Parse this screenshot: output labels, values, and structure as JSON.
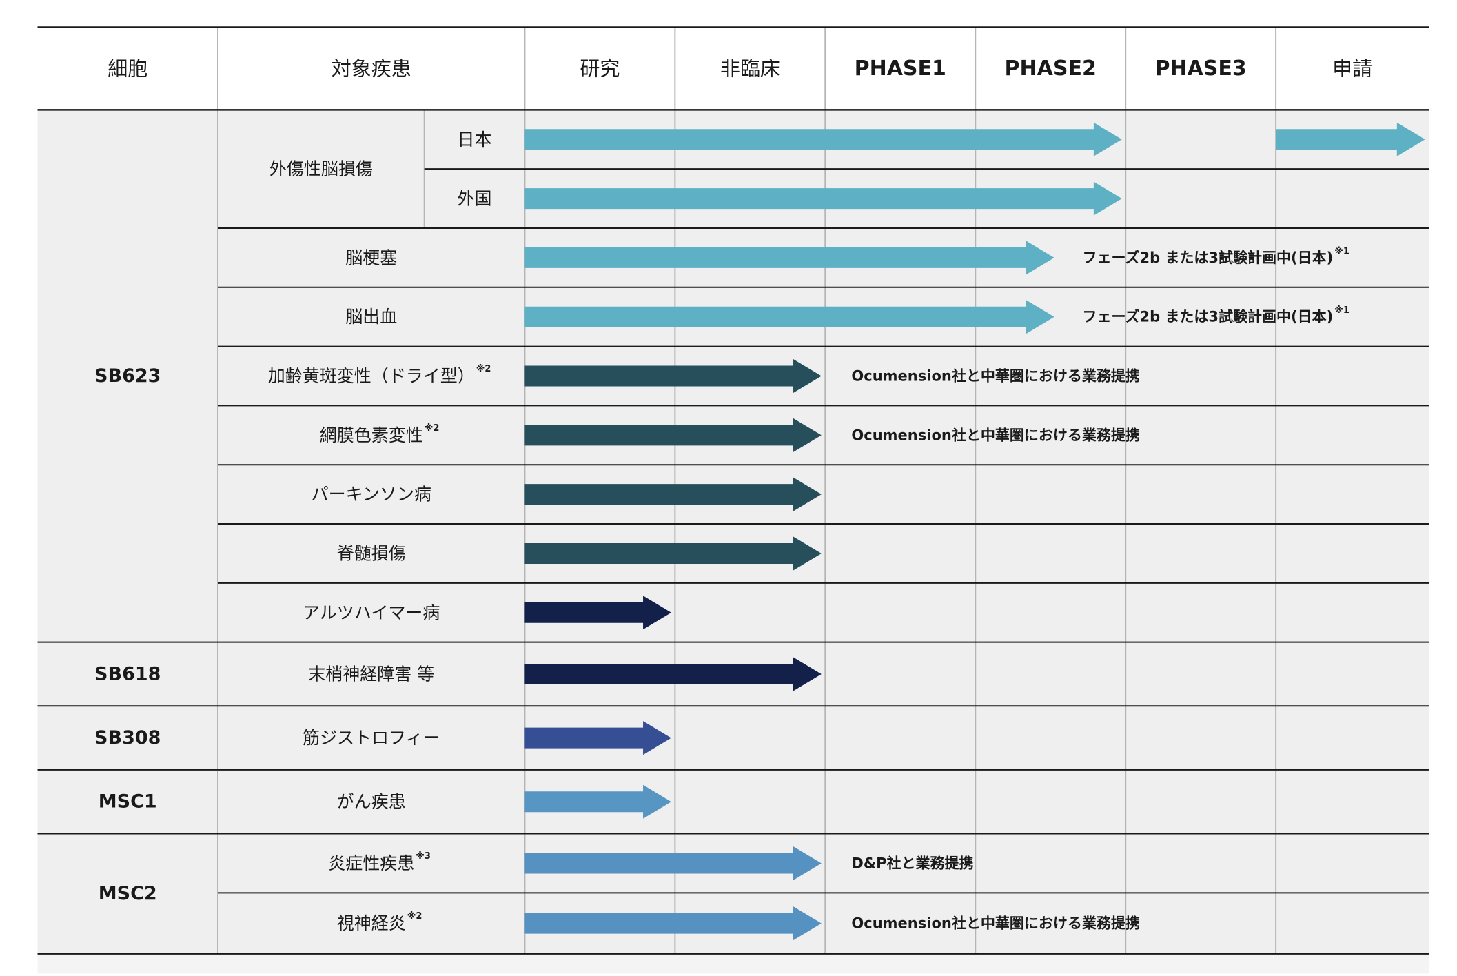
{
  "header": {
    "cell": "細胞",
    "disease": "対象疾患",
    "phases": [
      "研究",
      "非臨床",
      "PHASE1",
      "PHASE2",
      "PHASE3",
      "申請"
    ]
  },
  "groups": [
    {
      "cell": "SB623"
    },
    {
      "cell": "SB618"
    },
    {
      "cell": "SB308"
    },
    {
      "cell": "MSC1"
    },
    {
      "cell": "MSC2"
    }
  ],
  "rows": [
    {
      "disease": "外傷性脳損傷",
      "region": "日本",
      "sup": "",
      "start": 0,
      "end": 4,
      "color": "#5eb0c4",
      "note": "",
      "sup_note": "",
      "extra": {
        "start": 5,
        "end": 6
      }
    },
    {
      "disease": "",
      "region": "外国",
      "sup": "",
      "start": 0,
      "end": 4,
      "color": "#5eb0c4",
      "note": "",
      "sup_note": ""
    },
    {
      "disease": "脳梗塞",
      "region": "",
      "sup": "",
      "start": 0,
      "end": 3.55,
      "color": "#5eb0c4",
      "note": "フェーズ2b または3試験計画中(日本)",
      "sup_note": "※1"
    },
    {
      "disease": "脳出血",
      "region": "",
      "sup": "",
      "start": 0,
      "end": 3.55,
      "color": "#5eb0c4",
      "note": "フェーズ2b または3試験計画中(日本)",
      "sup_note": "※1"
    },
    {
      "disease": "加齢黄斑変性（ドライ型）",
      "region": "",
      "sup": "※2",
      "start": 0,
      "end": 2,
      "color": "#264f5b",
      "note": "Ocumension社と中華圏における業務提携",
      "sup_note": ""
    },
    {
      "disease": "網膜色素変性",
      "region": "",
      "sup": "※2",
      "start": 0,
      "end": 2,
      "color": "#264f5b",
      "note": "Ocumension社と中華圏における業務提携",
      "sup_note": ""
    },
    {
      "disease": "パーキンソン病",
      "region": "",
      "sup": "",
      "start": 0,
      "end": 2,
      "color": "#264f5b",
      "note": "",
      "sup_note": ""
    },
    {
      "disease": "脊髄損傷",
      "region": "",
      "sup": "",
      "start": 0,
      "end": 2,
      "color": "#264f5b",
      "note": "",
      "sup_note": ""
    },
    {
      "disease": "アルツハイマー病",
      "region": "",
      "sup": "",
      "start": 0,
      "end": 1,
      "color": "#13204a",
      "note": "",
      "sup_note": ""
    },
    {
      "disease": "末梢神経障害 等",
      "region": "",
      "sup": "",
      "start": 0,
      "end": 2,
      "color": "#13204a",
      "note": "",
      "sup_note": ""
    },
    {
      "disease": "筋ジストロフィー",
      "region": "",
      "sup": "",
      "start": 0,
      "end": 1,
      "color": "#364f94",
      "note": "",
      "sup_note": ""
    },
    {
      "disease": "がん疾患",
      "region": "",
      "sup": "",
      "start": 0,
      "end": 1,
      "color": "#5795c2",
      "note": "",
      "sup_note": ""
    },
    {
      "disease": "炎症性疾患",
      "region": "",
      "sup": "※3",
      "start": 0,
      "end": 2,
      "color": "#5592c1",
      "note": "D&P社と業務提携",
      "sup_note": ""
    },
    {
      "disease": "視神経炎",
      "region": "",
      "sup": "※2",
      "start": 0,
      "end": 2,
      "color": "#5592c1",
      "note": "Ocumension社と中華圏における業務提携",
      "sup_note": ""
    }
  ],
  "colors": {
    "background": "#efefef",
    "header_background": "#ffffff",
    "rule": "#1a1a1a",
    "grid": "#b5b5b5"
  }
}
